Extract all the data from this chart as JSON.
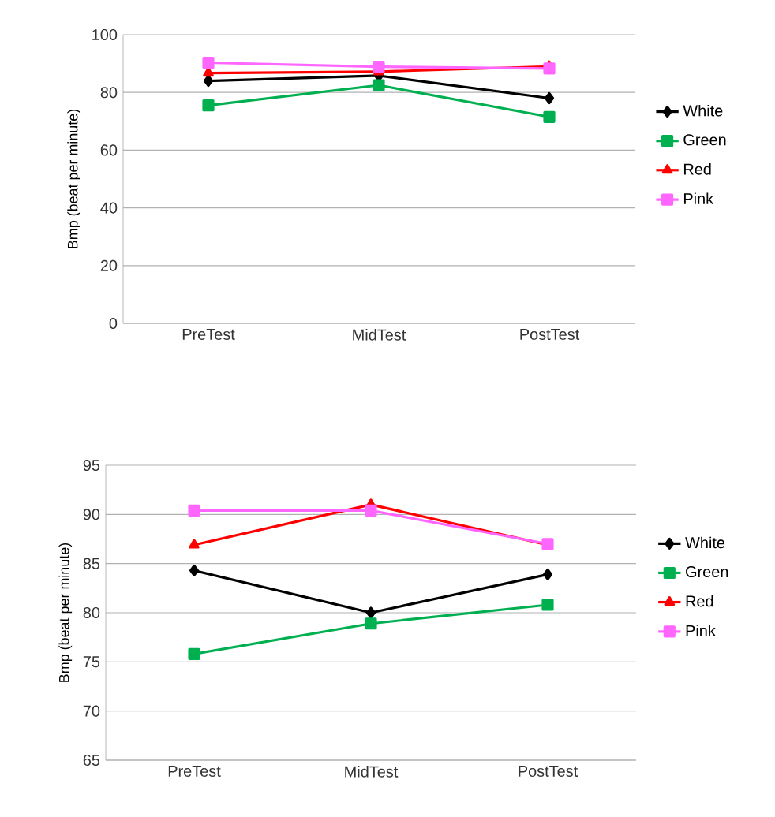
{
  "chart_data": [
    {
      "type": "line",
      "ylabel": "Bmp (beat per minute)",
      "categories": [
        "PreTest",
        "MidTest",
        "PostTest"
      ],
      "ylim": [
        0,
        100
      ],
      "yticks": [
        0,
        20,
        40,
        60,
        80,
        100
      ],
      "grid": "y",
      "legend": "right",
      "series": [
        {
          "name": "White",
          "color": "#000000",
          "marker": "diamond",
          "values": [
            84,
            85.8,
            78
          ]
        },
        {
          "name": "Green",
          "color": "#00b050",
          "marker": "square",
          "values": [
            75.5,
            82.5,
            71.5
          ]
        },
        {
          "name": "Red",
          "color": "#ff0000",
          "marker": "triangle",
          "values": [
            86.7,
            87.2,
            89
          ]
        },
        {
          "name": "Pink",
          "color": "#ff66ff",
          "marker": "square",
          "values": [
            90.3,
            88.9,
            88.3
          ]
        }
      ]
    },
    {
      "type": "line",
      "ylabel": "Bmp (beat per minute)",
      "categories": [
        "PreTest",
        "MidTest",
        "PostTest"
      ],
      "ylim": [
        65,
        95
      ],
      "yticks": [
        65,
        70,
        75,
        80,
        85,
        90,
        95
      ],
      "grid": "y",
      "legend": "right",
      "series": [
        {
          "name": "White",
          "color": "#000000",
          "marker": "diamond",
          "values": [
            84.3,
            80,
            83.9
          ]
        },
        {
          "name": "Green",
          "color": "#00b050",
          "marker": "square",
          "values": [
            75.8,
            78.9,
            80.8
          ]
        },
        {
          "name": "Red",
          "color": "#ff0000",
          "marker": "triangle",
          "values": [
            86.9,
            91,
            86.9
          ]
        },
        {
          "name": "Pink",
          "color": "#ff66ff",
          "marker": "square",
          "values": [
            90.4,
            90.4,
            87
          ]
        }
      ]
    }
  ]
}
